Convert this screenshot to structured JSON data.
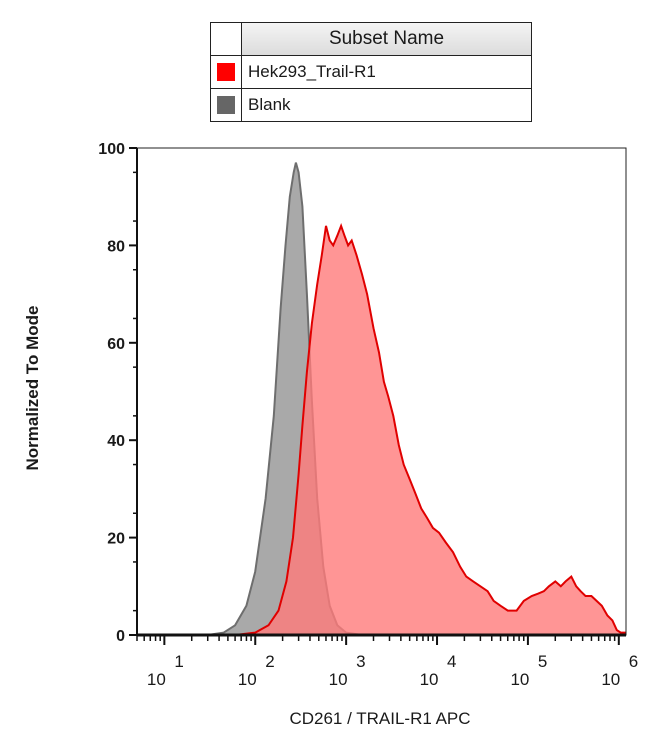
{
  "legend": {
    "header": "Subset Name",
    "items": [
      {
        "label": "Hek293_Trail-R1",
        "color": "#ff0000",
        "icon": "red-square"
      },
      {
        "label": "Blank",
        "color": "#666666",
        "icon": "gray-square"
      }
    ]
  },
  "chart_data": {
    "type": "area",
    "title": "",
    "xlabel": "CD261 / TRAIL-R1 APC",
    "ylabel": "Normalized To Mode",
    "xscale": "log",
    "xlim": [
      5,
      1200000
    ],
    "ylim": [
      0,
      100
    ],
    "yticks": [
      0,
      20,
      40,
      60,
      80,
      100
    ],
    "xtick_labels": [
      {
        "base": "10",
        "exp": "1",
        "value": 10
      },
      {
        "base": "10",
        "exp": "2",
        "value": 100
      },
      {
        "base": "10",
        "exp": "3",
        "value": 1000
      },
      {
        "base": "10",
        "exp": "4",
        "value": 10000
      },
      {
        "base": "10",
        "exp": "5",
        "value": 100000
      },
      {
        "base": "10",
        "exp": "6",
        "value": 1000000
      }
    ],
    "grid": false,
    "legend_position": "top",
    "series": [
      {
        "name": "Blank",
        "fill": "#a9a9a9",
        "stroke": "#6e6e6e",
        "points": [
          [
            5,
            0
          ],
          [
            30,
            0
          ],
          [
            45,
            0.5
          ],
          [
            60,
            2
          ],
          [
            80,
            6
          ],
          [
            100,
            13
          ],
          [
            130,
            28
          ],
          [
            160,
            45
          ],
          [
            190,
            67
          ],
          [
            215,
            80
          ],
          [
            240,
            90
          ],
          [
            265,
            95
          ],
          [
            280,
            97
          ],
          [
            300,
            95
          ],
          [
            330,
            88
          ],
          [
            370,
            70
          ],
          [
            420,
            48
          ],
          [
            480,
            28
          ],
          [
            560,
            14
          ],
          [
            660,
            6
          ],
          [
            800,
            2
          ],
          [
            1000,
            0.5
          ],
          [
            1500,
            0
          ],
          [
            1200000,
            0
          ]
        ]
      },
      {
        "name": "Hek293_Trail-R1",
        "fill": "#ff7a7a",
        "stroke": "#e00000",
        "points": [
          [
            5,
            0
          ],
          [
            60,
            0
          ],
          [
            100,
            0.5
          ],
          [
            140,
            2
          ],
          [
            180,
            5
          ],
          [
            220,
            11
          ],
          [
            260,
            20
          ],
          [
            300,
            33
          ],
          [
            330,
            43
          ],
          [
            370,
            54
          ],
          [
            420,
            64
          ],
          [
            480,
            72
          ],
          [
            540,
            78
          ],
          [
            600,
            84
          ],
          [
            660,
            81
          ],
          [
            720,
            80
          ],
          [
            800,
            82
          ],
          [
            880,
            84
          ],
          [
            960,
            82
          ],
          [
            1050,
            80
          ],
          [
            1150,
            81
          ],
          [
            1300,
            78
          ],
          [
            1500,
            74
          ],
          [
            1700,
            70
          ],
          [
            2000,
            63
          ],
          [
            2300,
            58
          ],
          [
            2600,
            52
          ],
          [
            2900,
            49
          ],
          [
            3300,
            45
          ],
          [
            3800,
            39
          ],
          [
            4300,
            35
          ],
          [
            5000,
            32
          ],
          [
            5800,
            29
          ],
          [
            6700,
            26
          ],
          [
            7800,
            24
          ],
          [
            9000,
            22
          ],
          [
            10500,
            21
          ],
          [
            12500,
            19
          ],
          [
            15000,
            17
          ],
          [
            18000,
            14
          ],
          [
            21000,
            12
          ],
          [
            25000,
            11
          ],
          [
            30000,
            10
          ],
          [
            36000,
            9
          ],
          [
            42000,
            7
          ],
          [
            50000,
            6
          ],
          [
            60000,
            5
          ],
          [
            75000,
            5
          ],
          [
            90000,
            7
          ],
          [
            110000,
            8
          ],
          [
            130000,
            8.5
          ],
          [
            150000,
            9
          ],
          [
            170000,
            10
          ],
          [
            200000,
            11
          ],
          [
            230000,
            10
          ],
          [
            260000,
            11
          ],
          [
            300000,
            12
          ],
          [
            340000,
            10
          ],
          [
            380000,
            9
          ],
          [
            430000,
            8
          ],
          [
            500000,
            8
          ],
          [
            570000,
            7
          ],
          [
            650000,
            6
          ],
          [
            750000,
            4
          ],
          [
            850000,
            3
          ],
          [
            950000,
            1
          ],
          [
            1050000,
            0.5
          ],
          [
            1200000,
            0.5
          ]
        ]
      }
    ]
  }
}
